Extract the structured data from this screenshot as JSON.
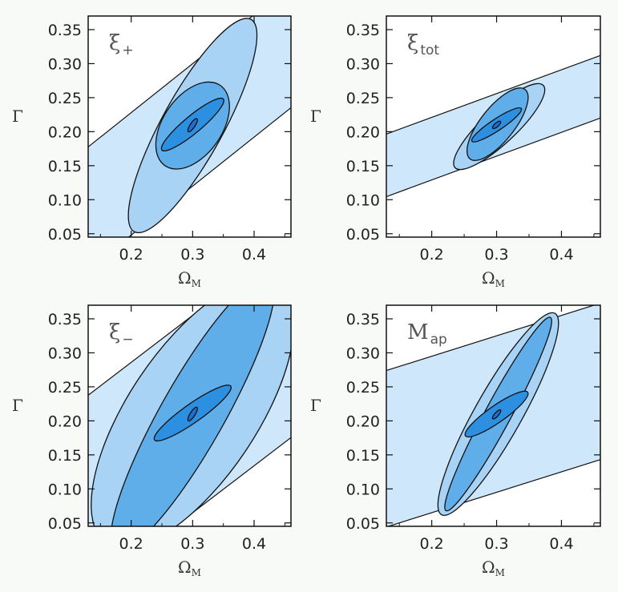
{
  "colors": {
    "background": "#f7faf7",
    "band": "#cfe7fb",
    "contour_outer": "#a9d3f5",
    "contour_mid": "#5faeea",
    "contour_inner": "#2c8fe0",
    "contour_core": "#1f6fd0",
    "stroke": "#111111"
  },
  "chart_data": [
    {
      "type": "contour",
      "panel_label": "ξ",
      "panel_label_sub": "+",
      "xlabel": "Ω",
      "xlabel_sub": "M",
      "ylabel": "Γ",
      "xlim": [
        0.13,
        0.46
      ],
      "ylim": [
        0.045,
        0.37
      ],
      "xticks": [
        0.2,
        0.3,
        0.4
      ],
      "xticklabels": [
        "0.2",
        "0.3",
        "0.4"
      ],
      "yticks": [
        0.05,
        0.1,
        0.15,
        0.2,
        0.25,
        0.3,
        0.35
      ],
      "yticklabels": [
        "0.05",
        "0.10",
        "0.15",
        "0.20",
        "0.25",
        "0.30",
        "0.35"
      ],
      "band": {
        "slope": 0.72,
        "center_at_x": 0.3,
        "y_center": 0.21,
        "half_width": 0.09
      },
      "ellipses": [
        {
          "level": "outer",
          "cx": 0.3,
          "cy": 0.21,
          "p1": [
            0.205,
            0.053
          ],
          "p2": [
            0.395,
            0.365
          ],
          "minor": 0.05
        },
        {
          "level": "mid",
          "cx": 0.3,
          "cy": 0.21,
          "p1": [
            0.255,
            0.15
          ],
          "p2": [
            0.345,
            0.268
          ],
          "minor": 0.048
        },
        {
          "level": "inner",
          "cx": 0.3,
          "cy": 0.21,
          "p1": [
            0.25,
            0.173
          ],
          "p2": [
            0.35,
            0.248
          ],
          "minor": 0.014
        },
        {
          "level": "core",
          "cx": 0.3,
          "cy": 0.21,
          "p1": [
            0.293,
            0.2
          ],
          "p2": [
            0.307,
            0.219
          ],
          "minor": 0.004
        }
      ]
    },
    {
      "type": "contour",
      "panel_label": "ξ",
      "panel_label_sub": "tot",
      "xlabel": "Ω",
      "xlabel_sub": "M",
      "ylabel": "Γ",
      "xlim": [
        0.13,
        0.46
      ],
      "ylim": [
        0.045,
        0.37
      ],
      "xticks": [
        0.2,
        0.3,
        0.4
      ],
      "xticklabels": [
        "0.2",
        "0.3",
        "0.4"
      ],
      "yticks": [
        0.05,
        0.1,
        0.15,
        0.2,
        0.25,
        0.3,
        0.35
      ],
      "yticklabels": [
        "0.05",
        "0.10",
        "0.15",
        "0.20",
        "0.25",
        "0.30",
        "0.35"
      ],
      "band": {
        "slope": 0.35,
        "center_at_x": 0.3,
        "y_center": 0.21,
        "half_width": 0.046
      },
      "ellipses": [
        {
          "level": "outer",
          "cx": 0.3,
          "cy": 0.21,
          "p1": [
            0.236,
            0.147
          ],
          "p2": [
            0.372,
            0.268
          ],
          "minor": 0.026
        },
        {
          "level": "mid",
          "cx": 0.3,
          "cy": 0.21,
          "p1": [
            0.259,
            0.16
          ],
          "p2": [
            0.344,
            0.262
          ],
          "minor": 0.026
        },
        {
          "level": "inner",
          "cx": 0.3,
          "cy": 0.21,
          "p1": [
            0.262,
            0.186
          ],
          "p2": [
            0.338,
            0.234
          ],
          "minor": 0.009
        },
        {
          "level": "core",
          "cx": 0.3,
          "cy": 0.21,
          "p1": [
            0.294,
            0.205
          ],
          "p2": [
            0.306,
            0.215
          ],
          "minor": 0.003
        }
      ]
    },
    {
      "type": "contour",
      "panel_label": "ξ",
      "panel_label_sub": "−",
      "xlabel": "Ω",
      "xlabel_sub": "M",
      "ylabel": "Γ",
      "xlim": [
        0.13,
        0.46
      ],
      "ylim": [
        0.045,
        0.37
      ],
      "xticks": [
        0.2,
        0.3,
        0.4
      ],
      "xticklabels": [
        "0.2",
        "0.3",
        "0.4"
      ],
      "yticks": [
        0.05,
        0.1,
        0.15,
        0.2,
        0.25,
        0.3,
        0.35
      ],
      "yticklabels": [
        "0.05",
        "0.10",
        "0.15",
        "0.20",
        "0.25",
        "0.30",
        "0.35"
      ],
      "band": {
        "slope": 0.69,
        "center_at_x": 0.3,
        "y_center": 0.21,
        "half_width": 0.145
      },
      "ellipses": [
        {
          "level": "outer",
          "cx": 0.3,
          "cy": 0.21,
          "p1": [
            0.16,
            0.02
          ],
          "p2": [
            0.44,
            0.4
          ],
          "minor": 0.105
        },
        {
          "level": "mid",
          "cx": 0.3,
          "cy": 0.21,
          "p1": [
            0.175,
            0.01
          ],
          "p2": [
            0.425,
            0.41
          ],
          "minor": 0.052
        },
        {
          "level": "inner",
          "cx": 0.3,
          "cy": 0.21,
          "p1": [
            0.238,
            0.172
          ],
          "p2": [
            0.362,
            0.251
          ],
          "minor": 0.015
        },
        {
          "level": "core",
          "cx": 0.3,
          "cy": 0.21,
          "p1": [
            0.293,
            0.2
          ],
          "p2": [
            0.307,
            0.22
          ],
          "minor": 0.004
        }
      ]
    },
    {
      "type": "contour",
      "panel_label": "M",
      "panel_label_sub": "ap",
      "xlabel": "Ω",
      "xlabel_sub": "M",
      "ylabel": "Γ",
      "xlim": [
        0.13,
        0.46
      ],
      "ylim": [
        0.045,
        0.37
      ],
      "xticks": [
        0.2,
        0.3,
        0.4
      ],
      "xticklabels": [
        "0.2",
        "0.3",
        "0.4"
      ],
      "yticks": [
        0.05,
        0.1,
        0.15,
        0.2,
        0.25,
        0.3,
        0.35
      ],
      "yticklabels": [
        "0.05",
        "0.10",
        "0.15",
        "0.20",
        "0.25",
        "0.30",
        "0.35"
      ],
      "band": {
        "slope": 0.3,
        "center_at_x": 0.3,
        "y_center": 0.21,
        "half_width": 0.115
      },
      "ellipses": [
        {
          "level": "outer",
          "cx": 0.3,
          "cy": 0.21,
          "p1": [
            0.215,
            0.062
          ],
          "p2": [
            0.39,
            0.358
          ],
          "minor": 0.036
        },
        {
          "level": "mid",
          "cx": 0.3,
          "cy": 0.21,
          "p1": [
            0.222,
            0.068
          ],
          "p2": [
            0.383,
            0.352
          ],
          "minor": 0.02
        },
        {
          "level": "inner",
          "cx": 0.3,
          "cy": 0.21,
          "p1": [
            0.252,
            0.178
          ],
          "p2": [
            0.348,
            0.242
          ],
          "minor": 0.013
        },
        {
          "level": "core",
          "cx": 0.3,
          "cy": 0.21,
          "p1": [
            0.294,
            0.203
          ],
          "p2": [
            0.306,
            0.216
          ],
          "minor": 0.003
        }
      ]
    }
  ]
}
